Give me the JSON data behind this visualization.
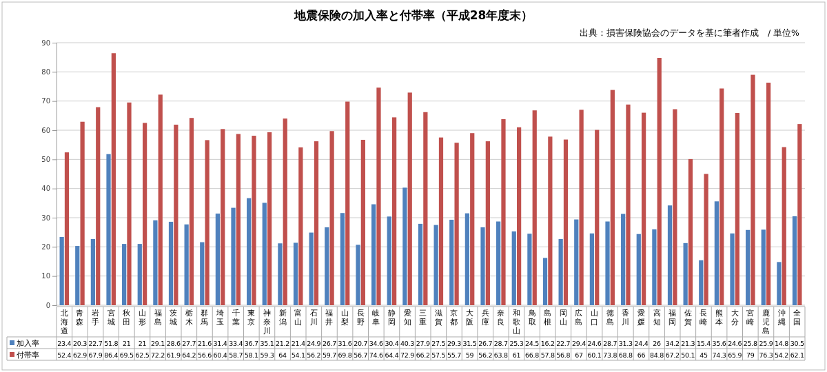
{
  "chart_data": {
    "type": "bar",
    "title": "地震保険の加入率と付帯率（平成28年度末）",
    "annotations": [
      "出典：損害保険協会のデータを基に筆者作成　/ 単位%"
    ],
    "categories": [
      "北海道",
      "青森",
      "岩手",
      "宮城",
      "秋田",
      "山形",
      "福島",
      "茨城",
      "栃木",
      "群馬",
      "埼玉",
      "千葉",
      "東京",
      "神奈川",
      "新潟",
      "富山",
      "石川",
      "福井",
      "山梨",
      "長野",
      "岐阜",
      "静岡",
      "愛知",
      "三重",
      "滋賀",
      "京都",
      "大阪",
      "兵庫",
      "奈良",
      "和歌山",
      "鳥取",
      "島根",
      "岡山",
      "広島",
      "山口",
      "徳島",
      "香川",
      "愛媛",
      "高知",
      "福岡",
      "佐賀",
      "長崎",
      "熊本",
      "大分",
      "宮崎",
      "鹿児島",
      "沖縄",
      "全国"
    ],
    "series": [
      {
        "name": "加入率",
        "color": "#4f81bd",
        "values": [
          23.4,
          20.3,
          22.7,
          51.8,
          21,
          21,
          29.1,
          28.6,
          27.7,
          21.6,
          31.4,
          33.4,
          36.7,
          35.1,
          21.2,
          21.4,
          24.9,
          26.7,
          31.6,
          20.7,
          34.6,
          30.4,
          40.3,
          27.9,
          27.5,
          29.3,
          31.5,
          26.7,
          28.7,
          25.3,
          24.5,
          16.2,
          22.7,
          29.4,
          24.6,
          28.7,
          31.3,
          24.4,
          26,
          34.2,
          21.3,
          15.4,
          35.6,
          24.6,
          25.8,
          25.9,
          14.8,
          30.5
        ]
      },
      {
        "name": "付帯率",
        "color": "#c0504d",
        "values": [
          52.4,
          62.9,
          67.9,
          86.4,
          69.5,
          62.5,
          72.2,
          61.9,
          64.2,
          56.6,
          60.4,
          58.7,
          58.1,
          59.3,
          64,
          54.1,
          56.2,
          59.7,
          69.8,
          56.7,
          74.6,
          64.4,
          72.9,
          66.2,
          57.5,
          55.7,
          59,
          56.2,
          63.8,
          61,
          66.8,
          57.8,
          56.8,
          67,
          60.1,
          73.8,
          68.8,
          66,
          84.8,
          67.2,
          50.1,
          45,
          74.3,
          65.9,
          79,
          76.3,
          54.2,
          62.1
        ]
      }
    ],
    "ylim": [
      0,
      90
    ],
    "yticks": [
      0,
      10,
      20,
      30,
      40,
      50,
      60,
      70,
      80,
      90
    ],
    "grid": "y",
    "legend": "bottom",
    "data_labels": true
  }
}
